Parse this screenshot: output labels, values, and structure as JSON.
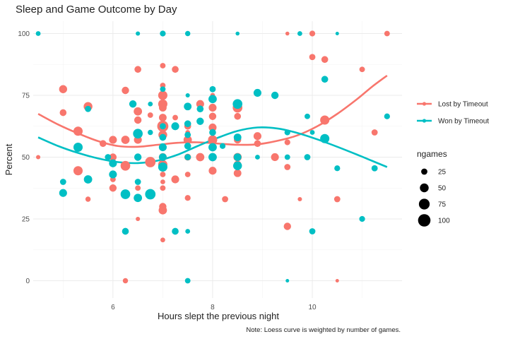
{
  "chart_data": {
    "type": "scatter",
    "title": "Sleep and Game Outcome by Day",
    "xlabel": "Hours slept the previous night",
    "ylabel": "Percent",
    "caption": "Note: Loess curve is weighted by number of games.",
    "xlim": [
      4.4,
      11.8
    ],
    "ylim": [
      -7,
      105
    ],
    "xticks": [
      6,
      8,
      10
    ],
    "xtick_labels": [
      "6",
      "8",
      "10"
    ],
    "yticks": [
      0,
      25,
      50,
      75,
      100
    ],
    "ytick_labels": [
      "0",
      "25",
      "50",
      "75",
      "100"
    ],
    "grid": true,
    "legend": {
      "color_title": "",
      "position": "right",
      "size_title": "ngames",
      "size_levels": [
        25,
        50,
        75,
        100
      ],
      "size_labels": [
        "25",
        "50",
        "75",
        "100"
      ]
    },
    "series": [
      {
        "name": "Lost by Timeout",
        "color": "#F8766D",
        "points": [
          [
            4.5,
            50,
            12
          ],
          [
            5,
            68,
            30
          ],
          [
            5,
            77.5,
            42
          ],
          [
            5.5,
            70.5,
            50
          ],
          [
            5.5,
            33,
            18
          ],
          [
            5.3,
            60.5,
            55
          ],
          [
            5.3,
            44.5,
            55
          ],
          [
            5.8,
            55.5,
            30
          ],
          [
            6,
            57,
            40
          ],
          [
            6,
            50,
            35
          ],
          [
            6,
            41,
            20
          ],
          [
            6,
            37.5,
            35
          ],
          [
            6.25,
            77,
            35
          ],
          [
            6.25,
            57,
            45
          ],
          [
            6.25,
            46.5,
            60
          ],
          [
            6.25,
            0,
            18
          ],
          [
            6.5,
            85.5,
            30
          ],
          [
            6.5,
            68.5,
            45
          ],
          [
            6.5,
            65,
            35
          ],
          [
            6.5,
            57,
            40
          ],
          [
            6.5,
            37.5,
            20
          ],
          [
            6.5,
            25,
            12
          ],
          [
            6.75,
            48,
            70
          ],
          [
            6.75,
            67,
            20
          ],
          [
            7,
            87,
            20
          ],
          [
            7,
            79,
            20
          ],
          [
            7,
            75,
            55
          ],
          [
            7,
            71.5,
            55
          ],
          [
            7,
            70,
            38
          ],
          [
            7,
            66,
            38
          ],
          [
            7,
            62.5,
            80
          ],
          [
            7,
            59,
            50
          ],
          [
            7,
            50,
            40
          ],
          [
            7,
            47,
            55
          ],
          [
            7,
            43,
            20
          ],
          [
            7,
            40,
            15
          ],
          [
            7,
            37.5,
            20
          ],
          [
            7,
            30,
            35
          ],
          [
            7,
            28.5,
            45
          ],
          [
            7,
            16.5,
            15
          ],
          [
            7,
            100,
            20
          ],
          [
            7.25,
            85.5,
            30
          ],
          [
            7.25,
            66,
            20
          ],
          [
            7.25,
            41,
            40
          ],
          [
            7.5,
            100,
            12
          ],
          [
            7.5,
            62.5,
            30
          ],
          [
            7.5,
            60,
            15
          ],
          [
            7.5,
            57,
            45
          ],
          [
            7.5,
            50,
            30
          ],
          [
            7.5,
            43,
            20
          ],
          [
            7.5,
            33.5,
            22
          ],
          [
            7.75,
            71.5,
            40
          ],
          [
            7.75,
            50,
            45
          ],
          [
            8,
            75,
            15
          ],
          [
            8,
            70,
            40
          ],
          [
            8,
            66.5,
            35
          ],
          [
            8,
            62,
            40
          ],
          [
            8,
            57,
            55
          ],
          [
            8,
            50,
            42
          ],
          [
            8,
            44.5,
            40
          ],
          [
            8.25,
            33,
            25
          ],
          [
            8.5,
            70,
            60
          ],
          [
            8.5,
            66.5,
            30
          ],
          [
            8.5,
            57,
            35
          ],
          [
            8.5,
            50,
            45
          ],
          [
            8.5,
            47,
            38
          ],
          [
            8.5,
            43.5,
            38
          ],
          [
            8.9,
            58.5,
            40
          ],
          [
            8.9,
            55.5,
            30
          ],
          [
            9.25,
            50,
            40
          ],
          [
            9.5,
            100,
            10
          ],
          [
            9.5,
            56,
            22
          ],
          [
            9.5,
            46,
            25
          ],
          [
            9.5,
            22,
            35
          ],
          [
            9.75,
            33,
            12
          ],
          [
            9.9,
            50,
            20
          ],
          [
            10,
            100,
            22
          ],
          [
            10,
            90.5,
            25
          ],
          [
            10.25,
            89.5,
            30
          ],
          [
            10.25,
            65,
            55
          ],
          [
            10.5,
            0,
            8
          ],
          [
            10.5,
            33,
            25
          ],
          [
            11,
            85.5,
            20
          ],
          [
            11.25,
            60,
            25
          ],
          [
            11.5,
            100,
            20
          ]
        ],
        "loess": [
          [
            4.5,
            67.5
          ],
          [
            4.9,
            63.2
          ],
          [
            5.3,
            59.6
          ],
          [
            5.7,
            56.5
          ],
          [
            6.1,
            54.5
          ],
          [
            6.5,
            54.2
          ],
          [
            6.9,
            55
          ],
          [
            7.3,
            55.8
          ],
          [
            7.7,
            56
          ],
          [
            8.1,
            55.5
          ],
          [
            8.5,
            55
          ],
          [
            8.9,
            55.2
          ],
          [
            9.3,
            56.6
          ],
          [
            9.7,
            58.8
          ],
          [
            10.1,
            62.5
          ],
          [
            10.5,
            67.5
          ],
          [
            10.9,
            73.5
          ],
          [
            11.2,
            78.5
          ],
          [
            11.5,
            83
          ]
        ]
      },
      {
        "name": "Won by Timeout",
        "color": "#00BFC4",
        "points": [
          [
            4.5,
            100,
            15
          ],
          [
            5,
            40,
            25
          ],
          [
            5,
            35.5,
            40
          ],
          [
            5.3,
            54,
            55
          ],
          [
            5.5,
            41,
            45
          ],
          [
            5.5,
            69.5,
            25
          ],
          [
            5.9,
            50,
            25
          ],
          [
            6,
            47.5,
            40
          ],
          [
            6,
            43,
            40
          ],
          [
            6.25,
            35,
            60
          ],
          [
            6.25,
            20,
            30
          ],
          [
            6.4,
            71.5,
            35
          ],
          [
            6.5,
            100,
            12
          ],
          [
            6.5,
            59.5,
            60
          ],
          [
            6.5,
            50,
            35
          ],
          [
            6.5,
            40,
            25
          ],
          [
            6.5,
            33.5,
            45
          ],
          [
            6.75,
            35,
            70
          ],
          [
            6.75,
            60,
            18
          ],
          [
            6.75,
            71.5,
            15
          ],
          [
            7,
            100,
            22
          ],
          [
            7,
            77.5,
            20
          ],
          [
            7,
            62.5,
            25
          ],
          [
            7,
            58,
            30
          ],
          [
            7,
            54,
            40
          ],
          [
            7,
            50,
            38
          ],
          [
            7,
            46,
            55
          ],
          [
            7.25,
            62.5,
            40
          ],
          [
            7.25,
            20,
            30
          ],
          [
            7.5,
            100,
            18
          ],
          [
            7.5,
            75,
            12
          ],
          [
            7.5,
            70.5,
            38
          ],
          [
            7.5,
            63.5,
            30
          ],
          [
            7.5,
            59,
            25
          ],
          [
            7.5,
            54.5,
            30
          ],
          [
            7.5,
            50,
            25
          ],
          [
            7.5,
            20,
            15
          ],
          [
            7.5,
            0,
            20
          ],
          [
            7.75,
            64.5,
            35
          ],
          [
            7.75,
            69.5,
            30
          ],
          [
            8,
            77.5,
            25
          ],
          [
            8,
            73.5,
            45
          ],
          [
            8,
            60,
            30
          ],
          [
            8,
            54,
            45
          ],
          [
            8,
            50,
            45
          ],
          [
            8.2,
            54.5,
            22
          ],
          [
            8.5,
            100,
            10
          ],
          [
            8.5,
            71.5,
            60
          ],
          [
            8.5,
            58,
            38
          ],
          [
            8.5,
            50,
            38
          ],
          [
            8.5,
            46.5,
            50
          ],
          [
            8.9,
            76,
            40
          ],
          [
            8.9,
            50,
            15
          ],
          [
            9.25,
            75,
            35
          ],
          [
            9.5,
            60,
            22
          ],
          [
            9.5,
            50,
            20
          ],
          [
            9.5,
            0,
            8
          ],
          [
            9.75,
            100,
            15
          ],
          [
            9.9,
            66.5,
            20
          ],
          [
            9.9,
            50,
            25
          ],
          [
            10,
            60,
            15
          ],
          [
            10,
            20,
            25
          ],
          [
            10.25,
            81.5,
            30
          ],
          [
            10.25,
            57.5,
            55
          ],
          [
            10.5,
            100,
            8
          ],
          [
            10.5,
            45.5,
            22
          ],
          [
            11,
            25,
            22
          ],
          [
            11.25,
            45.5,
            25
          ],
          [
            11.5,
            66.5,
            22
          ]
        ],
        "loess": [
          [
            4.5,
            58
          ],
          [
            4.9,
            54.5
          ],
          [
            5.3,
            51.7
          ],
          [
            5.7,
            49.5
          ],
          [
            6.1,
            48
          ],
          [
            6.5,
            47.6
          ],
          [
            6.9,
            48.6
          ],
          [
            7.3,
            51
          ],
          [
            7.7,
            54.5
          ],
          [
            8.1,
            57.8
          ],
          [
            8.5,
            60.6
          ],
          [
            8.9,
            62
          ],
          [
            9.3,
            61.6
          ],
          [
            9.7,
            59.8
          ],
          [
            10.1,
            57.2
          ],
          [
            10.5,
            54.2
          ],
          [
            10.9,
            51
          ],
          [
            11.2,
            48.5
          ],
          [
            11.5,
            46
          ]
        ]
      }
    ]
  }
}
